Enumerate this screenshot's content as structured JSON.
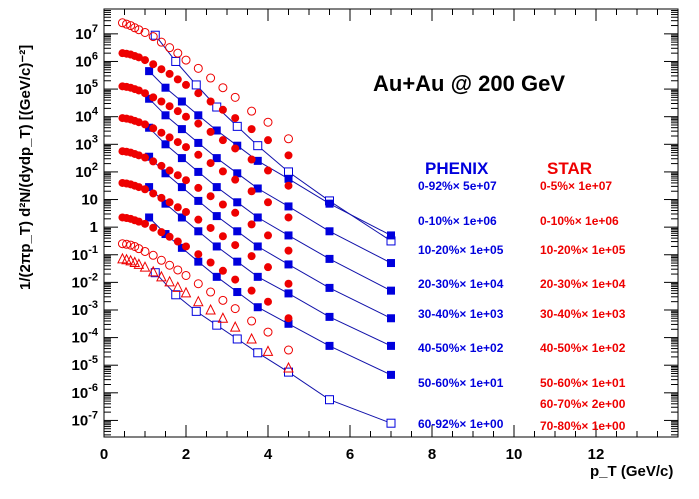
{
  "chart_data": {
    "type": "scatter",
    "title": "Au+Au @ 200 GeV",
    "xlabel": "p_T (GeV/c)",
    "ylabel": "1/(2πp_T) d²N/(dydp_T)  [(GeV/c)⁻²]",
    "xlim": [
      0,
      14
    ],
    "ylim_log10": [
      -7.6,
      7.9
    ],
    "y_scale": "log",
    "grid": false,
    "x_ticks": [
      "0",
      "2",
      "4",
      "6",
      "8",
      "10",
      "12"
    ],
    "y_ticks": [
      "10^7",
      "10^6",
      "10^5",
      "10^4",
      "10^3",
      "10^2",
      "10",
      "1",
      "10^-1",
      "10^-2",
      "10^-3",
      "10^-4",
      "10^-5",
      "10^-6",
      "10^-7"
    ],
    "colors": {
      "phenix": "#0000dd",
      "star": "#ee0000",
      "fit": "#1111aa",
      "axis": "#000000"
    },
    "legend": {
      "phenix_header": "PHENIX",
      "star_header": "STAR",
      "phenix_labels": [
        "0-92%× 5e+07",
        "0-10%× 1e+06",
        "10-20%× 1e+05",
        "20-30%× 1e+04",
        "30-40%× 1e+03",
        "40-50%× 1e+02",
        "50-60%× 1e+01",
        "60-92%× 1e+00"
      ],
      "star_labels": [
        "0-5%× 1e+07",
        "0-10%× 1e+06",
        "10-20%× 1e+05",
        "20-30%× 1e+04",
        "30-40%× 1e+03",
        "40-50%× 1e+02",
        "50-60%× 1e+01",
        "60-70%× 2e+00",
        "70-80%× 1e+00"
      ]
    },
    "series": [
      {
        "experiment": "PHENIX",
        "marker": "open-square",
        "fit": true,
        "x": [
          1.25,
          1.75,
          2.25,
          2.75,
          3.25,
          3.75,
          4.5,
          5.5,
          7.0
        ],
        "log10_y": [
          6.95,
          6.0,
          5.15,
          4.35,
          3.65,
          2.95,
          2.0,
          0.95,
          -0.5
        ]
      },
      {
        "experiment": "PHENIX",
        "marker": "filled-square",
        "fit": true,
        "x": [
          1.1,
          1.5,
          1.9,
          2.3,
          2.75,
          3.25,
          3.75,
          4.5,
          5.5,
          7.0
        ],
        "log10_y": [
          5.65,
          5.05,
          4.55,
          4.05,
          3.5,
          2.95,
          2.4,
          1.75,
          0.85,
          -0.3
        ]
      },
      {
        "experiment": "PHENIX",
        "marker": "filled-square",
        "fit": true,
        "x": [
          1.1,
          1.5,
          1.9,
          2.3,
          2.75,
          3.25,
          3.75,
          4.5,
          5.5,
          7.0
        ],
        "log10_y": [
          4.65,
          4.05,
          3.55,
          3.05,
          2.5,
          1.95,
          1.4,
          0.75,
          -0.15,
          -1.3
        ]
      },
      {
        "experiment": "PHENIX",
        "marker": "filled-square",
        "fit": true,
        "x": [
          1.1,
          1.5,
          1.9,
          2.3,
          2.75,
          3.25,
          3.75,
          4.5,
          5.5,
          7.0
        ],
        "log10_y": [
          3.6,
          3.0,
          2.5,
          2.0,
          1.45,
          0.9,
          0.35,
          -0.3,
          -1.15,
          -2.3
        ]
      },
      {
        "experiment": "PHENIX",
        "marker": "filled-square",
        "fit": true,
        "x": [
          1.1,
          1.5,
          1.9,
          2.3,
          2.75,
          3.25,
          3.75,
          4.5,
          5.5,
          7.0
        ],
        "log10_y": [
          2.55,
          1.95,
          1.45,
          0.95,
          0.4,
          -0.15,
          -0.7,
          -1.35,
          -2.2,
          -3.3
        ]
      },
      {
        "experiment": "PHENIX",
        "marker": "filled-square",
        "fit": true,
        "x": [
          1.1,
          1.5,
          1.9,
          2.3,
          2.75,
          3.25,
          3.75,
          4.5,
          5.5,
          7.0
        ],
        "log10_y": [
          1.45,
          0.85,
          0.35,
          -0.15,
          -0.7,
          -1.25,
          -1.8,
          -2.4,
          -3.25,
          -4.3
        ]
      },
      {
        "experiment": "PHENIX",
        "marker": "filled-square",
        "fit": true,
        "x": [
          1.1,
          1.5,
          1.9,
          2.3,
          2.75,
          3.25,
          3.75,
          4.5,
          5.5,
          7.0
        ],
        "log10_y": [
          0.35,
          -0.25,
          -0.75,
          -1.25,
          -1.8,
          -2.35,
          -2.9,
          -3.5,
          -4.3,
          -5.35
        ]
      },
      {
        "experiment": "PHENIX",
        "marker": "open-square",
        "fit": true,
        "x": [
          1.25,
          1.75,
          2.25,
          2.75,
          3.25,
          3.75,
          4.5,
          5.5,
          7.0
        ],
        "log10_y": [
          -1.65,
          -2.45,
          -3.05,
          -3.55,
          -4.05,
          -4.55,
          -5.25,
          -6.25,
          -7.1
        ]
      },
      {
        "experiment": "STAR",
        "marker": "open-circle",
        "fit": false,
        "x": [
          0.45,
          0.55,
          0.65,
          0.75,
          0.85,
          1.0,
          1.2,
          1.4,
          1.6,
          1.8,
          2.0,
          2.3,
          2.6,
          2.9,
          3.2,
          3.6,
          4.0,
          4.5
        ],
        "log10_y": [
          7.4,
          7.35,
          7.3,
          7.22,
          7.15,
          7.05,
          6.9,
          6.7,
          6.5,
          6.3,
          6.05,
          5.75,
          5.4,
          5.05,
          4.7,
          4.2,
          3.8,
          3.2
        ]
      },
      {
        "experiment": "STAR",
        "marker": "filled-circle",
        "fit": false,
        "x": [
          0.45,
          0.55,
          0.65,
          0.75,
          0.85,
          1.0,
          1.2,
          1.4,
          1.6,
          1.8,
          2.0,
          2.3,
          2.6,
          2.9,
          3.2,
          3.6,
          4.0,
          4.5
        ],
        "log10_y": [
          6.3,
          6.28,
          6.25,
          6.2,
          6.15,
          6.05,
          5.9,
          5.72,
          5.55,
          5.35,
          5.15,
          4.85,
          4.55,
          4.25,
          3.95,
          3.55,
          3.15,
          2.6
        ]
      },
      {
        "experiment": "STAR",
        "marker": "filled-circle",
        "fit": false,
        "x": [
          0.45,
          0.55,
          0.65,
          0.75,
          0.85,
          1.0,
          1.2,
          1.4,
          1.6,
          1.8,
          2.0,
          2.3,
          2.6,
          2.9,
          3.2,
          3.6,
          4.0,
          4.5
        ],
        "log10_y": [
          5.1,
          5.08,
          5.05,
          5.0,
          4.95,
          4.85,
          4.7,
          4.55,
          4.38,
          4.2,
          4.0,
          3.75,
          3.45,
          3.15,
          2.85,
          2.45,
          2.05,
          1.5
        ]
      },
      {
        "experiment": "STAR",
        "marker": "filled-circle",
        "fit": false,
        "x": [
          0.45,
          0.55,
          0.65,
          0.75,
          0.85,
          1.0,
          1.2,
          1.4,
          1.6,
          1.8,
          2.0,
          2.3,
          2.6,
          2.9,
          3.2,
          3.6,
          4.0,
          4.5
        ],
        "log10_y": [
          3.95,
          3.93,
          3.9,
          3.85,
          3.8,
          3.72,
          3.58,
          3.42,
          3.25,
          3.08,
          2.9,
          2.62,
          2.32,
          2.02,
          1.72,
          1.3,
          0.9,
          0.35
        ]
      },
      {
        "experiment": "STAR",
        "marker": "filled-circle",
        "fit": false,
        "x": [
          0.45,
          0.55,
          0.65,
          0.75,
          0.85,
          1.0,
          1.2,
          1.4,
          1.6,
          1.8,
          2.0,
          2.3,
          2.6,
          2.9,
          3.2,
          3.6,
          4.0,
          4.5
        ],
        "log10_y": [
          2.75,
          2.73,
          2.7,
          2.65,
          2.6,
          2.52,
          2.38,
          2.22,
          2.05,
          1.88,
          1.7,
          1.42,
          1.12,
          0.82,
          0.52,
          0.1,
          -0.3,
          -0.85
        ]
      },
      {
        "experiment": "STAR",
        "marker": "filled-circle",
        "fit": false,
        "x": [
          0.45,
          0.55,
          0.65,
          0.75,
          0.85,
          1.0,
          1.2,
          1.4,
          1.6,
          1.8,
          2.0,
          2.3,
          2.6,
          2.9,
          3.2,
          3.6,
          4.0,
          4.5
        ],
        "log10_y": [
          1.6,
          1.58,
          1.55,
          1.5,
          1.45,
          1.37,
          1.22,
          1.06,
          0.9,
          0.72,
          0.55,
          0.27,
          -0.03,
          -0.33,
          -0.65,
          -1.05,
          -1.45,
          -2.05
        ]
      },
      {
        "experiment": "STAR",
        "marker": "filled-circle",
        "fit": false,
        "x": [
          0.45,
          0.55,
          0.65,
          0.75,
          0.85,
          1.0,
          1.2,
          1.4,
          1.6,
          1.8,
          2.0,
          2.3,
          2.6,
          2.9,
          3.2,
          3.6,
          4.0,
          4.5
        ],
        "log10_y": [
          0.35,
          0.33,
          0.3,
          0.25,
          0.2,
          0.12,
          -0.02,
          -0.18,
          -0.35,
          -0.52,
          -0.7,
          -0.98,
          -1.28,
          -1.58,
          -1.9,
          -2.3,
          -2.7,
          -3.3
        ]
      },
      {
        "experiment": "STAR",
        "marker": "open-circle",
        "fit": false,
        "x": [
          0.45,
          0.55,
          0.65,
          0.75,
          0.85,
          1.0,
          1.2,
          1.4,
          1.6,
          1.8,
          2.0,
          2.3,
          2.6,
          2.9,
          3.2,
          3.6,
          4.0,
          4.5
        ],
        "log10_y": [
          -0.6,
          -0.62,
          -0.65,
          -0.7,
          -0.78,
          -0.88,
          -1.02,
          -1.2,
          -1.38,
          -1.55,
          -1.75,
          -2.05,
          -2.35,
          -2.65,
          -2.95,
          -3.4,
          -3.8,
          -4.45
        ]
      },
      {
        "experiment": "STAR",
        "marker": "open-triangle",
        "fit": false,
        "x": [
          0.45,
          0.55,
          0.65,
          0.75,
          0.85,
          1.0,
          1.2,
          1.4,
          1.6,
          1.8,
          2.0,
          2.3,
          2.6,
          2.9,
          3.2,
          3.6,
          4.0,
          4.5
        ],
        "log10_y": [
          -1.15,
          -1.18,
          -1.22,
          -1.28,
          -1.35,
          -1.45,
          -1.62,
          -1.8,
          -1.98,
          -2.18,
          -2.38,
          -2.7,
          -3.0,
          -3.3,
          -3.62,
          -4.05,
          -4.5,
          -5.1
        ]
      }
    ]
  }
}
